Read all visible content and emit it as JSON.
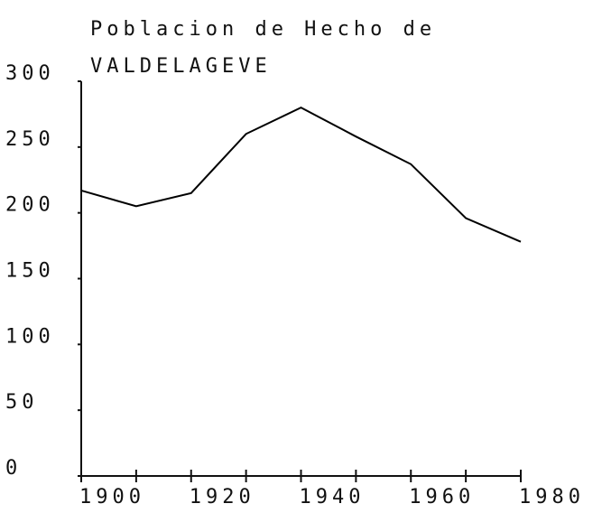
{
  "chart_data": {
    "type": "line",
    "title": [
      "Poblacion de Hecho de",
      "VALDELAGEVE"
    ],
    "x": [
      1900,
      1910,
      1920,
      1930,
      1940,
      1950,
      1960,
      1970,
      1980
    ],
    "values": [
      217,
      205,
      215,
      260,
      280,
      258,
      237,
      196,
      178
    ],
    "color": "#000000",
    "xlim": [
      1900,
      1980
    ],
    "xticks": [
      1900,
      1920,
      1940,
      1960,
      1980
    ],
    "xminorticks": [
      1910,
      1930,
      1950,
      1970
    ],
    "ylim": [
      0,
      300
    ],
    "yticks": [
      0,
      50,
      100,
      150,
      200,
      250,
      300
    ],
    "grid": false
  }
}
